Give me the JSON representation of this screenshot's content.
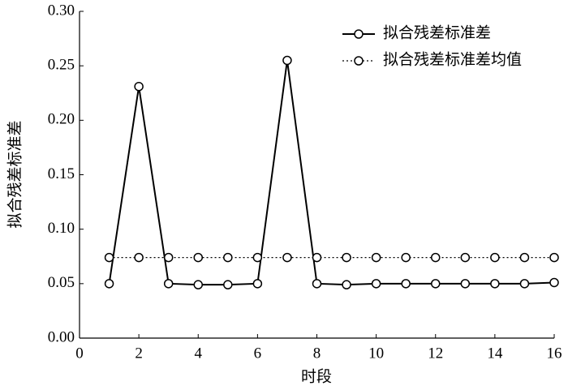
{
  "chart_data": {
    "type": "line",
    "x_label": "时段",
    "y_label": "拟合残差标准差",
    "x": [
      1,
      2,
      3,
      4,
      5,
      6,
      7,
      8,
      9,
      10,
      11,
      12,
      13,
      14,
      15,
      16
    ],
    "series": [
      {
        "name": "拟合残差标准差",
        "color": "#000000",
        "style": "solid",
        "values": [
          0.05,
          0.231,
          0.05,
          0.049,
          0.049,
          0.05,
          0.255,
          0.05,
          0.049,
          0.05,
          0.05,
          0.05,
          0.05,
          0.05,
          0.05,
          0.051
        ]
      },
      {
        "name": "拟合残差标准差均值",
        "color": "#000000",
        "style": "dotted",
        "values": [
          0.074,
          0.074,
          0.074,
          0.074,
          0.074,
          0.074,
          0.074,
          0.074,
          0.074,
          0.074,
          0.074,
          0.074,
          0.074,
          0.074,
          0.074,
          0.074
        ]
      }
    ],
    "xlim": [
      0,
      16
    ],
    "xticks": [
      0,
      2,
      4,
      6,
      8,
      10,
      12,
      14,
      16
    ],
    "ylim": [
      0,
      0.3
    ],
    "yticks": [
      {
        "value": 0,
        "label": "0.00"
      },
      {
        "value": 0.05,
        "label": "0.05"
      },
      {
        "value": 0.1,
        "label": "0.10"
      },
      {
        "value": 0.15,
        "label": "0.15"
      },
      {
        "value": 0.2,
        "label": "0.20"
      },
      {
        "value": 0.25,
        "label": "0.25"
      },
      {
        "value": 0.3,
        "label": "0.30"
      }
    ],
    "legend": "upper right",
    "grid": false
  }
}
